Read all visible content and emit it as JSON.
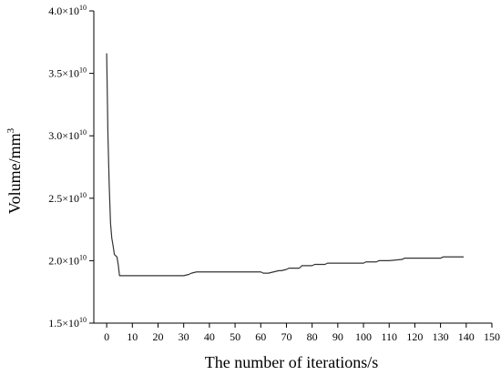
{
  "chart_data": {
    "type": "line",
    "xlabel": "The number of iterations/s",
    "ylabel": "Volume/mm",
    "ylabel_superscript": "3",
    "xlim": [
      -5,
      150
    ],
    "ylim": [
      15000000000.0,
      40000000000.0
    ],
    "x_ticks": [
      0,
      10,
      20,
      30,
      40,
      50,
      60,
      70,
      80,
      90,
      100,
      110,
      120,
      130,
      140,
      150
    ],
    "y_ticks": [
      {
        "value": 15000000000.0,
        "mantissa": "1.5",
        "base": "×10",
        "exp": "10"
      },
      {
        "value": 20000000000.0,
        "mantissa": "2.0",
        "base": "×10",
        "exp": "10"
      },
      {
        "value": 25000000000.0,
        "mantissa": "2.5",
        "base": "×10",
        "exp": "10"
      },
      {
        "value": 30000000000.0,
        "mantissa": "3.0",
        "base": "×10",
        "exp": "10"
      },
      {
        "value": 35000000000.0,
        "mantissa": "3.5",
        "base": "×10",
        "exp": "10"
      },
      {
        "value": 40000000000.0,
        "mantissa": "4.0",
        "base": "×10",
        "exp": "10"
      }
    ],
    "grid": false,
    "series": [
      {
        "color": "#333333",
        "x": [
          0,
          0.5,
          1,
          1.5,
          2,
          2.5,
          3,
          4,
          4.5,
          5,
          6,
          10,
          20,
          30,
          32,
          33,
          35,
          40,
          50,
          60,
          61,
          63,
          65,
          67,
          68,
          70,
          71,
          75,
          76,
          80,
          81,
          85,
          86,
          90,
          100,
          101,
          105,
          106,
          110,
          115,
          116,
          120,
          125,
          130,
          131,
          135,
          139
        ],
        "y": [
          36600000000.0,
          30000000000.0,
          26000000000.0,
          23000000000.0,
          21800000000.0,
          21200000000.0,
          20500000000.0,
          20300000000.0,
          19700000000.0,
          18800000000.0,
          18800000000.0,
          18800000000.0,
          18800000000.0,
          18800000000.0,
          18900000000.0,
          19000000000.0,
          19100000000.0,
          19100000000.0,
          19100000000.0,
          19100000000.0,
          19000000000.0,
          19000000000.0,
          19100000000.0,
          19200000000.0,
          19200000000.0,
          19300000000.0,
          19400000000.0,
          19400000000.0,
          19600000000.0,
          19600000000.0,
          19700000000.0,
          19700000000.0,
          19800000000.0,
          19800000000.0,
          19800000000.0,
          19900000000.0,
          19900000000.0,
          20000000000.0,
          20000000000.0,
          20100000000.0,
          20200000000.0,
          20200000000.0,
          20200000000.0,
          20200000000.0,
          20300000000.0,
          20300000000.0,
          20300000000.0
        ]
      }
    ]
  }
}
